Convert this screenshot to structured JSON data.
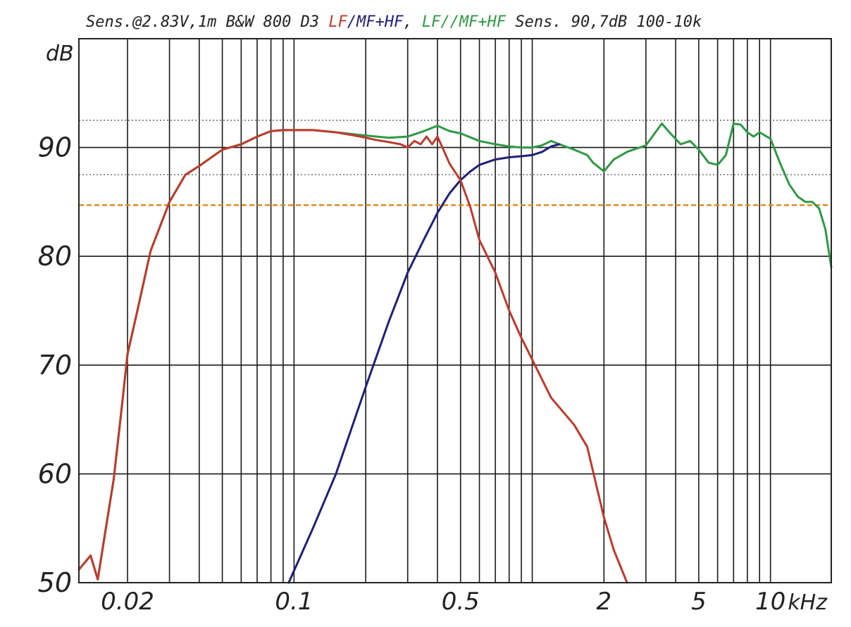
{
  "chart_data": {
    "type": "line",
    "title_parts": [
      {
        "text": "Sens.@2.83V,1m  B&W 800 D3 ",
        "color": "#222222"
      },
      {
        "text": "LF",
        "color": "#c0392b"
      },
      {
        "text": "/MF+HF",
        "color": "#1f1f7a"
      },
      {
        "text": ",  ",
        "color": "#222222"
      },
      {
        "text": "LF//MF+HF",
        "color": "#2e9a44"
      },
      {
        "text": " Sens. 90,7dB  100-10k",
        "color": "#222222"
      }
    ],
    "ylabel": "dB",
    "xlabel": "kHz",
    "x_scale": "log",
    "xlim": [
      0.0125,
      18
    ],
    "ylim": [
      50,
      100
    ],
    "y_ticks": [
      {
        "value": 50,
        "label": "50"
      },
      {
        "value": 60,
        "label": "60"
      },
      {
        "value": 70,
        "label": "70"
      },
      {
        "value": 80,
        "label": "80"
      },
      {
        "value": 90,
        "label": "90"
      }
    ],
    "x_tick_labels": [
      {
        "value": 0.02,
        "label": "0.02"
      },
      {
        "value": 0.1,
        "label": "0.1"
      },
      {
        "value": 0.5,
        "label": "0.5"
      },
      {
        "value": 2,
        "label": "2"
      },
      {
        "value": 5,
        "label": "5"
      },
      {
        "value": 10,
        "label": "10"
      }
    ],
    "grid": true,
    "reference_lines": [
      {
        "y": 92.5,
        "style": "dotted",
        "color": "#555555"
      },
      {
        "y": 87.5,
        "style": "dotted",
        "color": "#555555"
      },
      {
        "y": 84.7,
        "style": "dashed",
        "color": "#e08a1e"
      }
    ],
    "series": [
      {
        "name": "LF",
        "color": "#c0392b",
        "x": [
          0.0125,
          0.014,
          0.015,
          0.016,
          0.0175,
          0.019,
          0.02,
          0.022,
          0.025,
          0.03,
          0.035,
          0.04,
          0.05,
          0.06,
          0.07,
          0.08,
          0.09,
          0.1,
          0.12,
          0.15,
          0.18,
          0.2,
          0.22,
          0.25,
          0.28,
          0.3,
          0.32,
          0.34,
          0.36,
          0.38,
          0.4,
          0.42,
          0.45,
          0.5,
          0.55,
          0.6,
          0.7,
          0.8,
          0.9,
          1.0,
          1.2,
          1.5,
          1.7,
          2.0,
          2.2,
          2.5
        ],
        "y": [
          51.2,
          52.5,
          50.3,
          54.2,
          59.5,
          66.5,
          71.0,
          75.0,
          80.5,
          85.0,
          87.5,
          88.3,
          89.8,
          90.3,
          91.0,
          91.5,
          91.6,
          91.6,
          91.6,
          91.4,
          91.1,
          90.9,
          90.7,
          90.5,
          90.3,
          90.0,
          90.6,
          90.3,
          91.0,
          90.3,
          91.0,
          90.0,
          88.5,
          87.0,
          84.5,
          81.5,
          78.5,
          75.0,
          72.5,
          70.5,
          67.0,
          64.5,
          62.5,
          56.0,
          53.0,
          50.0
        ]
      },
      {
        "name": "MF+HF",
        "color": "#1f1f7a",
        "x": [
          0.095,
          0.12,
          0.15,
          0.2,
          0.25,
          0.3,
          0.35,
          0.4,
          0.45,
          0.5,
          0.55,
          0.6,
          0.7,
          0.8,
          0.9,
          1.0,
          1.1,
          1.2,
          1.3
        ],
        "y": [
          50.0,
          55.0,
          60.0,
          68.0,
          74.0,
          78.5,
          81.5,
          84.0,
          85.8,
          87.0,
          87.8,
          88.4,
          88.9,
          89.1,
          89.2,
          89.3,
          89.6,
          90.1,
          90.3
        ]
      },
      {
        "name": "LF//MF+HF",
        "color": "#2e9a44",
        "x": [
          0.0125,
          0.014,
          0.015,
          0.016,
          0.0175,
          0.019,
          0.02,
          0.022,
          0.025,
          0.03,
          0.035,
          0.04,
          0.05,
          0.06,
          0.07,
          0.08,
          0.09,
          0.1,
          0.12,
          0.15,
          0.2,
          0.25,
          0.3,
          0.35,
          0.4,
          0.45,
          0.5,
          0.6,
          0.7,
          0.8,
          0.9,
          1.0,
          1.1,
          1.2,
          1.3,
          1.5,
          1.7,
          1.8,
          2.0,
          2.2,
          2.5,
          3.0,
          3.5,
          3.8,
          4.2,
          4.6,
          5.0,
          5.5,
          6.0,
          6.5,
          7.0,
          7.5,
          8.0,
          8.5,
          9.0,
          10,
          11,
          12,
          13,
          14,
          15,
          16,
          17,
          18
        ],
        "y": [
          51.2,
          52.5,
          50.3,
          54.2,
          59.5,
          66.5,
          71.0,
          75.0,
          80.5,
          85.0,
          87.5,
          88.3,
          89.8,
          90.3,
          91.0,
          91.5,
          91.6,
          91.6,
          91.6,
          91.4,
          91.1,
          90.9,
          91.0,
          91.5,
          92.0,
          91.5,
          91.3,
          90.6,
          90.3,
          90.1,
          90.0,
          90.0,
          90.2,
          90.6,
          90.3,
          89.8,
          89.3,
          88.6,
          87.8,
          88.9,
          89.6,
          90.2,
          92.2,
          91.3,
          90.3,
          90.6,
          89.8,
          88.6,
          88.4,
          89.3,
          92.2,
          92.1,
          91.4,
          91.0,
          91.4,
          90.8,
          88.5,
          86.6,
          85.5,
          85.0,
          85.0,
          84.4,
          82.5,
          79.0
        ]
      }
    ]
  }
}
